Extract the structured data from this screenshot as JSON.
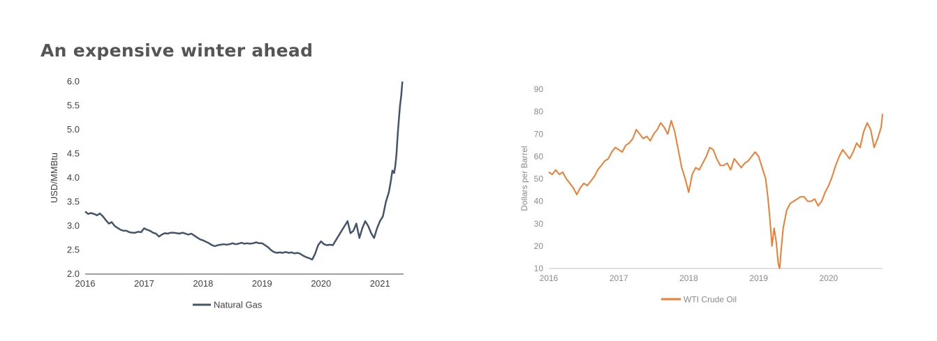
{
  "title": "An expensive winter ahead",
  "chart_data": [
    {
      "type": "line",
      "ylabel": "USD/MMBtu",
      "xlabel": "",
      "ylim": [
        2.0,
        6.0
      ],
      "yticks": [
        "2.0",
        "2.5",
        "3.0",
        "3.5",
        "4.0",
        "4.5",
        "5.0",
        "5.5",
        "6.0"
      ],
      "xlim": [
        2016,
        2021.4
      ],
      "xticks": [
        "2016",
        "2017",
        "2018",
        "2019",
        "2020",
        "2021"
      ],
      "grid": false,
      "legend_position": "bottom",
      "series": [
        {
          "name": "Natural Gas",
          "color": "#44546a",
          "x": [
            2016.0,
            2016.05,
            2016.1,
            2016.15,
            2016.2,
            2016.25,
            2016.3,
            2016.35,
            2016.4,
            2016.45,
            2016.5,
            2016.55,
            2016.6,
            2016.65,
            2016.7,
            2016.75,
            2016.8,
            2016.85,
            2016.9,
            2016.95,
            2017.0,
            2017.05,
            2017.1,
            2017.15,
            2017.2,
            2017.25,
            2017.3,
            2017.35,
            2017.4,
            2017.45,
            2017.5,
            2017.55,
            2017.6,
            2017.65,
            2017.7,
            2017.75,
            2017.8,
            2017.85,
            2017.9,
            2017.95,
            2018.0,
            2018.05,
            2018.1,
            2018.15,
            2018.2,
            2018.25,
            2018.3,
            2018.35,
            2018.4,
            2018.45,
            2018.5,
            2018.55,
            2018.6,
            2018.65,
            2018.7,
            2018.75,
            2018.8,
            2018.85,
            2018.9,
            2018.95,
            2019.0,
            2019.05,
            2019.1,
            2019.15,
            2019.2,
            2019.25,
            2019.3,
            2019.35,
            2019.4,
            2019.45,
            2019.5,
            2019.55,
            2019.6,
            2019.65,
            2019.7,
            2019.75,
            2019.8,
            2019.85,
            2019.9,
            2019.95,
            2020.0,
            2020.05,
            2020.1,
            2020.15,
            2020.2,
            2020.25,
            2020.3,
            2020.35,
            2020.4,
            2020.45,
            2020.5,
            2020.55,
            2020.6,
            2020.65,
            2020.7,
            2020.75,
            2020.8,
            2020.85,
            2020.9,
            2020.95,
            2021.0,
            2021.05,
            2021.1,
            2021.15,
            2021.18,
            2021.21,
            2021.24,
            2021.26,
            2021.28,
            2021.3,
            2021.32,
            2021.34,
            2021.36,
            2021.38
          ],
          "values": [
            3.3,
            3.25,
            3.27,
            3.25,
            3.22,
            3.26,
            3.2,
            3.12,
            3.05,
            3.08,
            3.0,
            2.96,
            2.92,
            2.9,
            2.9,
            2.87,
            2.86,
            2.86,
            2.88,
            2.87,
            2.95,
            2.92,
            2.9,
            2.86,
            2.84,
            2.78,
            2.82,
            2.85,
            2.84,
            2.86,
            2.86,
            2.85,
            2.84,
            2.86,
            2.84,
            2.82,
            2.84,
            2.8,
            2.76,
            2.72,
            2.7,
            2.67,
            2.64,
            2.6,
            2.58,
            2.6,
            2.61,
            2.62,
            2.61,
            2.62,
            2.64,
            2.62,
            2.63,
            2.65,
            2.63,
            2.64,
            2.63,
            2.64,
            2.66,
            2.64,
            2.64,
            2.6,
            2.56,
            2.5,
            2.46,
            2.44,
            2.45,
            2.44,
            2.46,
            2.44,
            2.45,
            2.43,
            2.44,
            2.42,
            2.38,
            2.35,
            2.33,
            2.3,
            2.42,
            2.6,
            2.68,
            2.62,
            2.6,
            2.61,
            2.6,
            2.7,
            2.8,
            2.9,
            3.0,
            3.1,
            2.85,
            2.9,
            3.05,
            2.75,
            2.95,
            3.1,
            3.0,
            2.85,
            2.75,
            2.95,
            3.1,
            3.2,
            3.5,
            3.7,
            3.9,
            4.15,
            4.1,
            4.25,
            4.5,
            4.9,
            5.2,
            5.5,
            5.7,
            6.0
          ]
        }
      ]
    },
    {
      "type": "line",
      "ylabel": "Dollars per Barrel",
      "xlabel": "",
      "ylim": [
        10,
        90
      ],
      "yticks": [
        "10",
        "20",
        "30",
        "40",
        "50",
        "60",
        "70",
        "80",
        "90"
      ],
      "xlim": [
        2016,
        2020.77
      ],
      "xticks": [
        "2016",
        "2017",
        "2018",
        "2019",
        "2020"
      ],
      "grid": false,
      "legend_position": "bottom",
      "series": [
        {
          "name": "WTI Crude Oil",
          "color": "#ed7d31",
          "x": [
            2016.0,
            2016.05,
            2016.1,
            2016.15,
            2016.2,
            2016.25,
            2016.3,
            2016.35,
            2016.4,
            2016.45,
            2016.5,
            2016.55,
            2016.6,
            2016.65,
            2016.7,
            2016.75,
            2016.8,
            2016.85,
            2016.9,
            2016.95,
            2017.0,
            2017.05,
            2017.1,
            2017.15,
            2017.2,
            2017.25,
            2017.3,
            2017.35,
            2017.4,
            2017.45,
            2017.5,
            2017.55,
            2017.6,
            2017.65,
            2017.7,
            2017.75,
            2017.8,
            2017.85,
            2017.9,
            2017.95,
            2018.0,
            2018.05,
            2018.1,
            2018.15,
            2018.2,
            2018.25,
            2018.3,
            2018.35,
            2018.4,
            2018.45,
            2018.5,
            2018.55,
            2018.6,
            2018.65,
            2018.7,
            2018.75,
            2018.8,
            2018.85,
            2018.9,
            2018.95,
            2019.0,
            2019.05,
            2019.1,
            2019.13,
            2019.16,
            2019.19,
            2019.22,
            2019.25,
            2019.28,
            2019.3,
            2019.32,
            2019.35,
            2019.4,
            2019.45,
            2019.5,
            2019.55,
            2019.6,
            2019.65,
            2019.7,
            2019.75,
            2019.8,
            2019.85,
            2019.9,
            2019.95,
            2020.0,
            2020.05,
            2020.1,
            2020.15,
            2020.2,
            2020.25,
            2020.3,
            2020.35,
            2020.4,
            2020.45,
            2020.5,
            2020.55,
            2020.6,
            2020.65,
            2020.7,
            2020.75,
            2020.77
          ],
          "values": [
            53,
            52,
            54,
            52,
            53,
            50,
            48,
            46,
            43,
            46,
            48,
            47,
            49,
            51,
            54,
            56,
            58,
            59,
            62,
            64,
            63,
            62,
            65,
            66,
            68,
            72,
            70,
            68,
            69,
            67,
            70,
            72,
            75,
            73,
            70,
            76,
            71,
            63,
            55,
            50,
            44,
            52,
            55,
            54,
            57,
            60,
            64,
            63,
            59,
            56,
            56,
            57,
            54,
            59,
            57,
            55,
            57,
            58,
            60,
            62,
            60,
            55,
            50,
            42,
            32,
            20,
            28,
            22,
            12,
            10,
            18,
            28,
            36,
            39,
            40,
            41,
            42,
            42,
            40,
            40,
            41,
            38,
            40,
            44,
            47,
            51,
            56,
            60,
            63,
            61,
            59,
            62,
            66,
            64,
            71,
            75,
            72,
            64,
            68,
            73,
            79
          ]
        }
      ]
    }
  ]
}
